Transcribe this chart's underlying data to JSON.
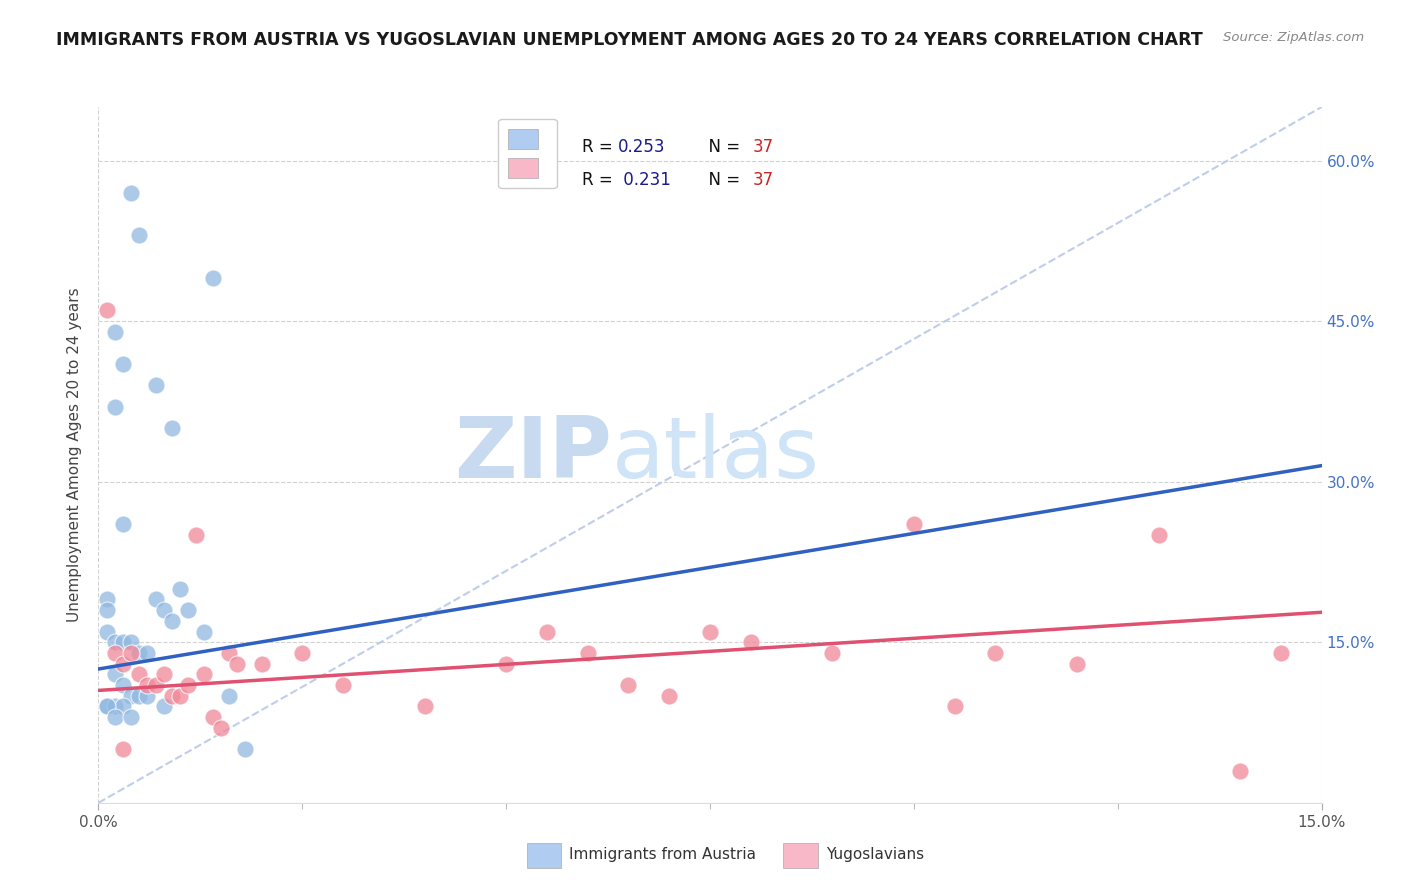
{
  "title": "IMMIGRANTS FROM AUSTRIA VS YUGOSLAVIAN UNEMPLOYMENT AMONG AGES 20 TO 24 YEARS CORRELATION CHART",
  "source": "Source: ZipAtlas.com",
  "ylabel": "Unemployment Among Ages 20 to 24 years",
  "xmin": 0.0,
  "xmax": 0.15,
  "ymin": 0.0,
  "ymax": 0.65,
  "yticks": [
    0.0,
    0.15,
    0.3,
    0.45,
    0.6
  ],
  "ytick_labels": [
    "",
    "15.0%",
    "30.0%",
    "45.0%",
    "60.0%"
  ],
  "austria_scatter_x": [
    0.004,
    0.005,
    0.014,
    0.002,
    0.003,
    0.007,
    0.002,
    0.009,
    0.003,
    0.001,
    0.001,
    0.001,
    0.002,
    0.003,
    0.004,
    0.005,
    0.006,
    0.007,
    0.008,
    0.009,
    0.01,
    0.011,
    0.013,
    0.016,
    0.018,
    0.002,
    0.003,
    0.004,
    0.005,
    0.006,
    0.001,
    0.002,
    0.003,
    0.008,
    0.001,
    0.002,
    0.004
  ],
  "austria_scatter_y": [
    0.57,
    0.53,
    0.49,
    0.44,
    0.41,
    0.39,
    0.37,
    0.35,
    0.26,
    0.19,
    0.18,
    0.16,
    0.15,
    0.15,
    0.15,
    0.14,
    0.14,
    0.19,
    0.18,
    0.17,
    0.2,
    0.18,
    0.16,
    0.1,
    0.05,
    0.12,
    0.11,
    0.1,
    0.1,
    0.1,
    0.09,
    0.09,
    0.09,
    0.09,
    0.09,
    0.08,
    0.08
  ],
  "yugoslav_scatter_x": [
    0.001,
    0.002,
    0.003,
    0.004,
    0.005,
    0.006,
    0.007,
    0.008,
    0.009,
    0.01,
    0.011,
    0.012,
    0.013,
    0.014,
    0.015,
    0.016,
    0.017,
    0.02,
    0.025,
    0.03,
    0.04,
    0.05,
    0.055,
    0.06,
    0.065,
    0.07,
    0.075,
    0.08,
    0.09,
    0.1,
    0.105,
    0.11,
    0.12,
    0.13,
    0.14,
    0.145,
    0.003
  ],
  "yugoslav_scatter_y": [
    0.46,
    0.14,
    0.13,
    0.14,
    0.12,
    0.11,
    0.11,
    0.12,
    0.1,
    0.1,
    0.11,
    0.25,
    0.12,
    0.08,
    0.07,
    0.14,
    0.13,
    0.13,
    0.14,
    0.11,
    0.09,
    0.13,
    0.16,
    0.14,
    0.11,
    0.1,
    0.16,
    0.15,
    0.14,
    0.26,
    0.09,
    0.14,
    0.13,
    0.25,
    0.03,
    0.14,
    0.05
  ],
  "austria_color": "#90b8e0",
  "yugoslav_color": "#f08898",
  "austria_line_color": "#3060c0",
  "yugoslav_line_color": "#e05070",
  "diagonal_color": "#b8c8e8",
  "background_color": "#ffffff",
  "watermark_zip_color": "#c8daf0",
  "watermark_atlas_color": "#d0e4f8",
  "legend_austria_color": "#b0ccf0",
  "legend_yugoslav_color": "#f8b8c8",
  "legend_text_color": "#1a1a8c",
  "legend_n_color": "#cc2222",
  "right_axis_color": "#4472c4"
}
